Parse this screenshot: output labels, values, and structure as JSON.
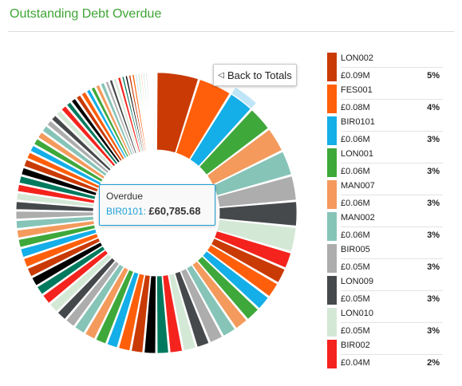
{
  "header": {
    "title": "Outstanding Debt Overdue"
  },
  "controls": {
    "back_label": "Back to Totals",
    "back_icon": "triangle-left-icon"
  },
  "tooltip": {
    "title": "Overdue",
    "name": "BIR0101:",
    "value": "£60,785.68"
  },
  "legend": [
    {
      "name": "LON002",
      "amount": "£0.09M",
      "percent": "5%",
      "color": "#c93a05"
    },
    {
      "name": "FES001",
      "amount": "£0.08M",
      "percent": "4%",
      "color": "#ff5f0a"
    },
    {
      "name": "BIR0101",
      "amount": "£0.06M",
      "percent": "3%",
      "color": "#14aee8"
    },
    {
      "name": "LON001",
      "amount": "£0.06M",
      "percent": "3%",
      "color": "#3ea83a"
    },
    {
      "name": "MAN007",
      "amount": "£0.06M",
      "percent": "3%",
      "color": "#f39a5c"
    },
    {
      "name": "MAN002",
      "amount": "£0.06M",
      "percent": "3%",
      "color": "#86c4b8"
    },
    {
      "name": "BIR005",
      "amount": "£0.05M",
      "percent": "3%",
      "color": "#adadad"
    },
    {
      "name": "LON009",
      "amount": "£0.05M",
      "percent": "3%",
      "color": "#46494c"
    },
    {
      "name": "LON010",
      "amount": "£0.05M",
      "percent": "3%",
      "color": "#d4e8d6"
    },
    {
      "name": "BIR002",
      "amount": "£0.04M",
      "percent": "2%",
      "color": "#f4231d"
    }
  ],
  "chart_data": {
    "type": "pie",
    "style": "donut",
    "title": "Outstanding Debt Overdue",
    "value_unit": "£M",
    "highlighted": "BIR0101",
    "labeled_slices": [
      {
        "name": "LON002",
        "value": 0.09,
        "percent": 5
      },
      {
        "name": "FES001",
        "value": 0.08,
        "percent": 4
      },
      {
        "name": "BIR0101",
        "value": 0.06,
        "percent": 3
      },
      {
        "name": "LON001",
        "value": 0.06,
        "percent": 3
      },
      {
        "name": "MAN007",
        "value": 0.06,
        "percent": 3
      },
      {
        "name": "MAN002",
        "value": 0.06,
        "percent": 3
      },
      {
        "name": "BIR005",
        "value": 0.05,
        "percent": 3
      },
      {
        "name": "LON009",
        "value": 0.05,
        "percent": 3
      },
      {
        "name": "LON010",
        "value": 0.05,
        "percent": 3
      },
      {
        "name": "BIR002",
        "value": 0.04,
        "percent": 2
      }
    ],
    "other_slice_percents": [
      1.9,
      1.9,
      1.8,
      1.8,
      1.7,
      1.7,
      1.7,
      1.6,
      1.6,
      1.6,
      1.5,
      1.5,
      1.5,
      1.5,
      1.4,
      1.4,
      1.4,
      1.4,
      1.3,
      1.3,
      1.3,
      1.3,
      1.2,
      1.2,
      1.2,
      1.2,
      1.2,
      1.1,
      1.1,
      1.1,
      1.1,
      1.1,
      1.0,
      1.0,
      1.0,
      1.0,
      1.0,
      0.9,
      0.9,
      0.9,
      0.9,
      0.9,
      0.8,
      0.8,
      0.8,
      0.8,
      0.7,
      0.7,
      0.7,
      0.7,
      0.6,
      0.6,
      0.6,
      0.6,
      0.5,
      0.5,
      0.5,
      0.5,
      0.4,
      0.4,
      0.4,
      0.4,
      0.3,
      0.3,
      0.3,
      0.3,
      0.3,
      0.2,
      0.2,
      0.2,
      0.2,
      0.2
    ],
    "palette": [
      "#c93a05",
      "#ff5f0a",
      "#14aee8",
      "#3ea83a",
      "#f39a5c",
      "#86c4b8",
      "#adadad",
      "#46494c",
      "#d4e8d6",
      "#f4231d",
      "#007a5e",
      "#000000"
    ],
    "legend_position": "right"
  }
}
